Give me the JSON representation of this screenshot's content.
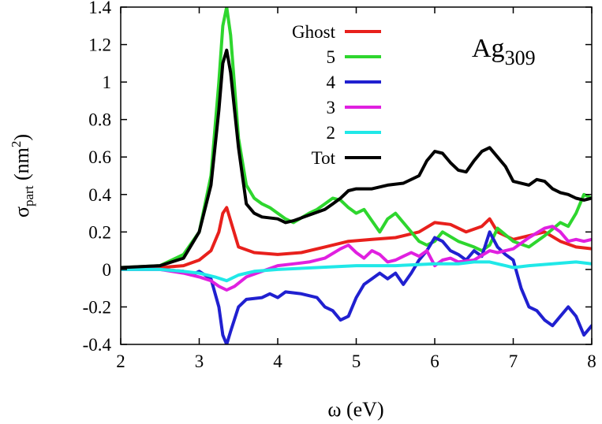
{
  "chart_data": {
    "type": "line",
    "xlabel": "ω (eV)",
    "ylabel": {
      "base": "σ",
      "sub": "part",
      "paren_open": " (nm",
      "sup": "2",
      "paren_close": ")"
    },
    "annotation": {
      "base": "Ag",
      "sub": "309"
    },
    "xlim": [
      2,
      8
    ],
    "ylim": [
      -0.4,
      1.4
    ],
    "x_ticks": [
      {
        "value": 2,
        "label": "2"
      },
      {
        "value": 3,
        "label": "3"
      },
      {
        "value": 4,
        "label": "4"
      },
      {
        "value": 5,
        "label": "5"
      },
      {
        "value": 6,
        "label": "6"
      },
      {
        "value": 7,
        "label": "7"
      },
      {
        "value": 8,
        "label": "8"
      }
    ],
    "y_ticks": [
      {
        "value": -0.4,
        "label": "-0.4"
      },
      {
        "value": -0.2,
        "label": "-0.2"
      },
      {
        "value": 0,
        "label": "0"
      },
      {
        "value": 0.2,
        "label": "0.2"
      },
      {
        "value": 0.4,
        "label": "0.4"
      },
      {
        "value": 0.6,
        "label": "0.6"
      },
      {
        "value": 0.8,
        "label": "0.8"
      },
      {
        "value": 1.0,
        "label": "1"
      },
      {
        "value": 1.2,
        "label": "1.2"
      },
      {
        "value": 1.4,
        "label": "1.4"
      }
    ],
    "grid": false,
    "legend_position": "top-right",
    "series": [
      {
        "name": "Ghost",
        "color": "#e8201c",
        "points": [
          [
            2,
            0.01
          ],
          [
            2.5,
            0.01
          ],
          [
            2.8,
            0.02
          ],
          [
            3.0,
            0.05
          ],
          [
            3.15,
            0.1
          ],
          [
            3.25,
            0.2
          ],
          [
            3.3,
            0.3
          ],
          [
            3.35,
            0.33
          ],
          [
            3.4,
            0.26
          ],
          [
            3.5,
            0.12
          ],
          [
            3.7,
            0.09
          ],
          [
            4.0,
            0.08
          ],
          [
            4.3,
            0.09
          ],
          [
            4.6,
            0.12
          ],
          [
            4.9,
            0.15
          ],
          [
            5.2,
            0.16
          ],
          [
            5.5,
            0.17
          ],
          [
            5.8,
            0.2
          ],
          [
            6.0,
            0.25
          ],
          [
            6.2,
            0.24
          ],
          [
            6.4,
            0.2
          ],
          [
            6.6,
            0.23
          ],
          [
            6.7,
            0.27
          ],
          [
            6.8,
            0.2
          ],
          [
            7.0,
            0.16
          ],
          [
            7.2,
            0.18
          ],
          [
            7.4,
            0.2
          ],
          [
            7.6,
            0.15
          ],
          [
            7.8,
            0.12
          ],
          [
            8.0,
            0.11
          ]
        ]
      },
      {
        "name": "5",
        "color": "#2ed62e",
        "points": [
          [
            2,
            0.01
          ],
          [
            2.5,
            0.02
          ],
          [
            2.8,
            0.08
          ],
          [
            3.0,
            0.2
          ],
          [
            3.15,
            0.5
          ],
          [
            3.25,
            1.0
          ],
          [
            3.3,
            1.3
          ],
          [
            3.35,
            1.4
          ],
          [
            3.4,
            1.25
          ],
          [
            3.5,
            0.7
          ],
          [
            3.6,
            0.45
          ],
          [
            3.7,
            0.38
          ],
          [
            3.8,
            0.35
          ],
          [
            3.9,
            0.33
          ],
          [
            4.1,
            0.27
          ],
          [
            4.2,
            0.25
          ],
          [
            4.4,
            0.3
          ],
          [
            4.5,
            0.32
          ],
          [
            4.6,
            0.35
          ],
          [
            4.7,
            0.38
          ],
          [
            4.8,
            0.37
          ],
          [
            4.9,
            0.33
          ],
          [
            5.0,
            0.3
          ],
          [
            5.1,
            0.32
          ],
          [
            5.2,
            0.26
          ],
          [
            5.3,
            0.2
          ],
          [
            5.4,
            0.27
          ],
          [
            5.5,
            0.3
          ],
          [
            5.6,
            0.25
          ],
          [
            5.8,
            0.15
          ],
          [
            5.9,
            0.13
          ],
          [
            6.0,
            0.15
          ],
          [
            6.1,
            0.2
          ],
          [
            6.3,
            0.15
          ],
          [
            6.5,
            0.12
          ],
          [
            6.6,
            0.1
          ],
          [
            6.7,
            0.13
          ],
          [
            6.8,
            0.22
          ],
          [
            7.0,
            0.15
          ],
          [
            7.2,
            0.12
          ],
          [
            7.4,
            0.18
          ],
          [
            7.6,
            0.25
          ],
          [
            7.7,
            0.23
          ],
          [
            7.8,
            0.3
          ],
          [
            7.9,
            0.4
          ],
          [
            8.0,
            0.38
          ]
        ]
      },
      {
        "name": "4",
        "color": "#2020d0",
        "points": [
          [
            2,
            0.0
          ],
          [
            2.5,
            0.0
          ],
          [
            2.8,
            -0.01
          ],
          [
            2.9,
            -0.03
          ],
          [
            3.0,
            -0.01
          ],
          [
            3.15,
            -0.05
          ],
          [
            3.25,
            -0.2
          ],
          [
            3.3,
            -0.35
          ],
          [
            3.35,
            -0.4
          ],
          [
            3.4,
            -0.33
          ],
          [
            3.5,
            -0.2
          ],
          [
            3.6,
            -0.16
          ],
          [
            3.8,
            -0.15
          ],
          [
            3.9,
            -0.13
          ],
          [
            4.0,
            -0.15
          ],
          [
            4.1,
            -0.12
          ],
          [
            4.3,
            -0.13
          ],
          [
            4.5,
            -0.15
          ],
          [
            4.6,
            -0.2
          ],
          [
            4.7,
            -0.22
          ],
          [
            4.8,
            -0.27
          ],
          [
            4.9,
            -0.25
          ],
          [
            5.0,
            -0.15
          ],
          [
            5.1,
            -0.08
          ],
          [
            5.2,
            -0.05
          ],
          [
            5.3,
            -0.02
          ],
          [
            5.4,
            -0.05
          ],
          [
            5.5,
            -0.02
          ],
          [
            5.6,
            -0.08
          ],
          [
            5.7,
            -0.02
          ],
          [
            5.8,
            0.05
          ],
          [
            5.9,
            0.1
          ],
          [
            6.0,
            0.17
          ],
          [
            6.1,
            0.15
          ],
          [
            6.2,
            0.1
          ],
          [
            6.3,
            0.08
          ],
          [
            6.4,
            0.05
          ],
          [
            6.5,
            0.1
          ],
          [
            6.6,
            0.07
          ],
          [
            6.7,
            0.2
          ],
          [
            6.8,
            0.12
          ],
          [
            6.9,
            0.08
          ],
          [
            7.0,
            0.05
          ],
          [
            7.1,
            -0.1
          ],
          [
            7.2,
            -0.2
          ],
          [
            7.3,
            -0.22
          ],
          [
            7.4,
            -0.27
          ],
          [
            7.5,
            -0.3
          ],
          [
            7.6,
            -0.25
          ],
          [
            7.7,
            -0.2
          ],
          [
            7.8,
            -0.25
          ],
          [
            7.9,
            -0.35
          ],
          [
            8.0,
            -0.3
          ]
        ]
      },
      {
        "name": "3",
        "color": "#e020e0",
        "points": [
          [
            2,
            0.0
          ],
          [
            2.5,
            0.0
          ],
          [
            2.8,
            -0.02
          ],
          [
            3.0,
            -0.04
          ],
          [
            3.15,
            -0.06
          ],
          [
            3.25,
            -0.09
          ],
          [
            3.35,
            -0.11
          ],
          [
            3.45,
            -0.09
          ],
          [
            3.6,
            -0.04
          ],
          [
            3.8,
            -0.01
          ],
          [
            4.0,
            0.02
          ],
          [
            4.2,
            0.03
          ],
          [
            4.4,
            0.04
          ],
          [
            4.6,
            0.06
          ],
          [
            4.8,
            0.11
          ],
          [
            4.9,
            0.13
          ],
          [
            5.0,
            0.09
          ],
          [
            5.1,
            0.06
          ],
          [
            5.2,
            0.1
          ],
          [
            5.3,
            0.08
          ],
          [
            5.4,
            0.04
          ],
          [
            5.5,
            0.05
          ],
          [
            5.6,
            0.07
          ],
          [
            5.7,
            0.09
          ],
          [
            5.8,
            0.07
          ],
          [
            5.9,
            0.1
          ],
          [
            6.0,
            0.02
          ],
          [
            6.1,
            0.05
          ],
          [
            6.2,
            0.06
          ],
          [
            6.3,
            0.04
          ],
          [
            6.5,
            0.05
          ],
          [
            6.7,
            0.1
          ],
          [
            6.8,
            0.09
          ],
          [
            7.0,
            0.11
          ],
          [
            7.2,
            0.17
          ],
          [
            7.4,
            0.22
          ],
          [
            7.5,
            0.23
          ],
          [
            7.6,
            0.2
          ],
          [
            7.7,
            0.15
          ],
          [
            7.8,
            0.16
          ],
          [
            7.9,
            0.15
          ],
          [
            8.0,
            0.16
          ]
        ]
      },
      {
        "name": "2",
        "color": "#20e8e8",
        "points": [
          [
            2,
            0.0
          ],
          [
            2.5,
            0.0
          ],
          [
            2.8,
            -0.01
          ],
          [
            3.0,
            -0.02
          ],
          [
            3.2,
            -0.04
          ],
          [
            3.35,
            -0.06
          ],
          [
            3.5,
            -0.03
          ],
          [
            3.7,
            -0.01
          ],
          [
            4.0,
            0.0
          ],
          [
            4.5,
            0.01
          ],
          [
            5.0,
            0.02
          ],
          [
            5.5,
            0.02
          ],
          [
            6.0,
            0.03
          ],
          [
            6.3,
            0.03
          ],
          [
            6.5,
            0.04
          ],
          [
            6.7,
            0.04
          ],
          [
            6.9,
            0.02
          ],
          [
            7.0,
            0.01
          ],
          [
            7.2,
            0.02
          ],
          [
            7.5,
            0.03
          ],
          [
            7.8,
            0.04
          ],
          [
            8.0,
            0.03
          ]
        ]
      },
      {
        "name": "Tot",
        "color": "#000000",
        "points": [
          [
            2,
            0.01
          ],
          [
            2.5,
            0.02
          ],
          [
            2.8,
            0.06
          ],
          [
            3.0,
            0.2
          ],
          [
            3.15,
            0.45
          ],
          [
            3.25,
            0.85
          ],
          [
            3.3,
            1.1
          ],
          [
            3.35,
            1.17
          ],
          [
            3.4,
            1.05
          ],
          [
            3.5,
            0.65
          ],
          [
            3.6,
            0.35
          ],
          [
            3.7,
            0.3
          ],
          [
            3.8,
            0.28
          ],
          [
            4.0,
            0.27
          ],
          [
            4.1,
            0.25
          ],
          [
            4.2,
            0.26
          ],
          [
            4.4,
            0.29
          ],
          [
            4.6,
            0.32
          ],
          [
            4.7,
            0.35
          ],
          [
            4.8,
            0.38
          ],
          [
            4.9,
            0.42
          ],
          [
            5.0,
            0.43
          ],
          [
            5.2,
            0.43
          ],
          [
            5.4,
            0.45
          ],
          [
            5.6,
            0.46
          ],
          [
            5.8,
            0.5
          ],
          [
            5.9,
            0.58
          ],
          [
            6.0,
            0.63
          ],
          [
            6.1,
            0.62
          ],
          [
            6.2,
            0.57
          ],
          [
            6.3,
            0.53
          ],
          [
            6.4,
            0.52
          ],
          [
            6.5,
            0.58
          ],
          [
            6.6,
            0.63
          ],
          [
            6.7,
            0.65
          ],
          [
            6.8,
            0.6
          ],
          [
            6.9,
            0.55
          ],
          [
            7.0,
            0.47
          ],
          [
            7.2,
            0.45
          ],
          [
            7.3,
            0.48
          ],
          [
            7.4,
            0.47
          ],
          [
            7.5,
            0.43
          ],
          [
            7.6,
            0.41
          ],
          [
            7.7,
            0.4
          ],
          [
            7.8,
            0.38
          ],
          [
            7.9,
            0.37
          ],
          [
            8.0,
            0.38
          ]
        ]
      }
    ]
  }
}
